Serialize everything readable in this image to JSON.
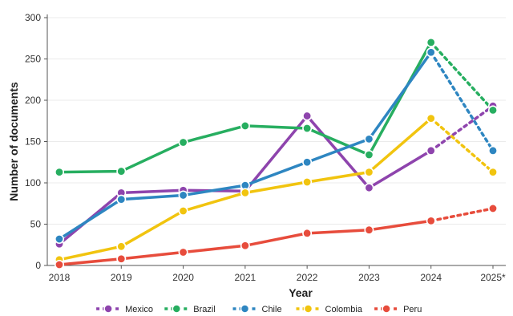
{
  "chart_data": {
    "type": "line",
    "xlabel": "Year",
    "ylabel": "Number of documents",
    "categories": [
      "2018",
      "2019",
      "2020",
      "2021",
      "2022",
      "2023",
      "2024",
      "2025*"
    ],
    "ylim": [
      0,
      300
    ],
    "yticks": [
      0,
      50,
      100,
      150,
      200,
      250,
      300
    ],
    "grid": true,
    "legend_position": "bottom",
    "projected_from_index": 6,
    "series": [
      {
        "name": "Mexico",
        "color": "#8e44ad",
        "values": [
          26,
          88,
          91,
          90,
          181,
          94,
          139,
          193
        ]
      },
      {
        "name": "Brazil",
        "color": "#27ae60",
        "values": [
          113,
          114,
          149,
          169,
          166,
          134,
          270,
          188
        ]
      },
      {
        "name": "Chile",
        "color": "#2e86c1",
        "values": [
          32,
          80,
          85,
          97,
          125,
          153,
          258,
          139
        ]
      },
      {
        "name": "Colombia",
        "color": "#f1c40f",
        "values": [
          7,
          23,
          66,
          88,
          101,
          113,
          178,
          113
        ]
      },
      {
        "name": "Peru",
        "color": "#e74c3c",
        "values": [
          1,
          8,
          16,
          24,
          39,
          43,
          54,
          69
        ]
      }
    ]
  }
}
